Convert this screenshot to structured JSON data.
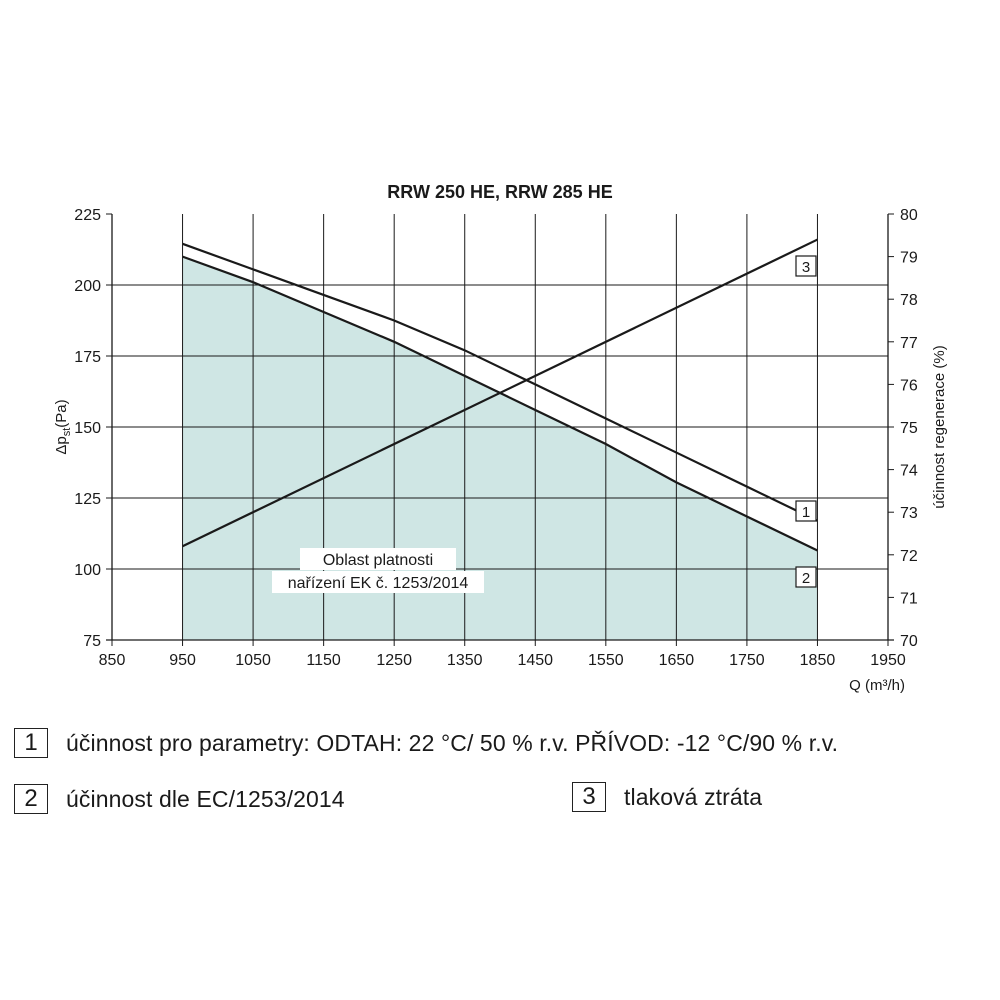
{
  "chart_data": {
    "type": "line",
    "title": "RRW 250 HE, RRW 285 HE",
    "xlabel": "Q (m³/h)",
    "ylabel_left": "Δp",
    "ylabel_left_sub": "st",
    "ylabel_left_unit": "(Pa)",
    "ylabel_right": "účinnost regenerace (%)",
    "xlim": [
      850,
      1950
    ],
    "ylim_left": [
      75,
      225
    ],
    "ylim_right": [
      70,
      80
    ],
    "x_ticks": [
      850,
      950,
      1050,
      1150,
      1250,
      1350,
      1450,
      1550,
      1650,
      1750,
      1850,
      1950
    ],
    "y_left_ticks": [
      75,
      100,
      125,
      150,
      175,
      200,
      225
    ],
    "y_right_ticks": [
      70,
      71,
      72,
      73,
      74,
      75,
      76,
      77,
      78,
      79,
      80
    ],
    "grid": true,
    "region": {
      "label_line1": "Oblast platnosti",
      "label_line2": "nařízení EK č. 1253/2014",
      "color": "#cfe6e4",
      "x_range": [
        950,
        1850
      ]
    },
    "series": [
      {
        "name": "1",
        "axis": "right",
        "x": [
          950,
          1050,
          1150,
          1250,
          1350,
          1450,
          1550,
          1650,
          1750,
          1850
        ],
        "values": [
          79.3,
          78.7,
          78.1,
          77.5,
          76.8,
          76.0,
          75.2,
          74.4,
          73.6,
          72.8
        ]
      },
      {
        "name": "2",
        "axis": "right",
        "x": [
          950,
          1050,
          1150,
          1250,
          1350,
          1450,
          1550,
          1650,
          1750,
          1850
        ],
        "values": [
          79.0,
          78.4,
          77.7,
          77.0,
          76.2,
          75.4,
          74.6,
          73.7,
          72.9,
          72.1
        ]
      },
      {
        "name": "3",
        "axis": "left",
        "x": [
          950,
          1850
        ],
        "values": [
          108,
          216
        ]
      }
    ]
  },
  "legend": [
    {
      "key": "1",
      "text": "účinnost pro parametry: ODTAH: 22 °C/ 50 % r.v. PŘÍVOD: -12 °C/90 % r.v."
    },
    {
      "key": "2",
      "text": "účinnost dle EC/1253/2014"
    },
    {
      "key": "3",
      "text": "tlaková ztráta"
    }
  ],
  "colors": {
    "line": "#1a1a1a",
    "grid": "#1a1a1a",
    "region": "#cfe6e4"
  }
}
